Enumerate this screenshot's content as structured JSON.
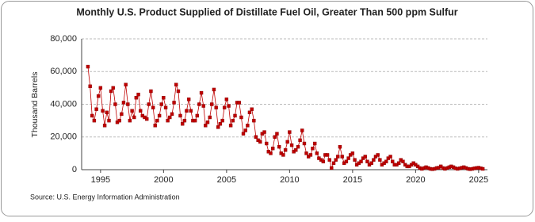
{
  "chart_data": {
    "type": "line",
    "title": "Monthly U.S. Product Supplied of Distillate Fuel Oil, Greater Than 500 ppm Sulfur",
    "y_label": "Thousand Barrels",
    "source": "Source: U.S. Energy Information Administration",
    "color": "#c00000",
    "grid": true,
    "xlim": [
      1993.5,
      2025.7
    ],
    "xticks": [
      1995,
      2000,
      2005,
      2010,
      2015,
      2020,
      2025
    ],
    "ylim": [
      0,
      80000
    ],
    "yticks": [
      {
        "value": 0,
        "label": "0"
      },
      {
        "value": 20000,
        "label": "20,000"
      },
      {
        "value": 40000,
        "label": "40,000"
      },
      {
        "value": 60000,
        "label": "60,000"
      },
      {
        "value": 80000,
        "label": "80,000"
      }
    ],
    "x": [
      1994,
      1994.17,
      1994.33,
      1994.5,
      1994.67,
      1994.83,
      1995,
      1995.17,
      1995.33,
      1995.5,
      1995.67,
      1995.83,
      1996,
      1996.17,
      1996.33,
      1996.5,
      1996.67,
      1996.83,
      1997,
      1997.17,
      1997.33,
      1997.5,
      1997.67,
      1997.83,
      1998,
      1998.17,
      1998.33,
      1998.5,
      1998.67,
      1998.83,
      1999,
      1999.17,
      1999.33,
      1999.5,
      1999.67,
      1999.83,
      2000,
      2000.17,
      2000.33,
      2000.5,
      2000.67,
      2000.83,
      2001,
      2001.17,
      2001.33,
      2001.5,
      2001.67,
      2001.83,
      2002,
      2002.17,
      2002.33,
      2002.5,
      2002.67,
      2002.83,
      2003,
      2003.17,
      2003.33,
      2003.5,
      2003.67,
      2003.83,
      2004,
      2004.17,
      2004.33,
      2004.5,
      2004.67,
      2004.83,
      2005,
      2005.17,
      2005.33,
      2005.5,
      2005.67,
      2005.83,
      2006,
      2006.17,
      2006.33,
      2006.5,
      2006.67,
      2006.83,
      2007,
      2007.17,
      2007.33,
      2007.5,
      2007.67,
      2007.83,
      2008,
      2008.17,
      2008.33,
      2008.5,
      2008.67,
      2008.83,
      2009,
      2009.17,
      2009.33,
      2009.5,
      2009.67,
      2009.83,
      2010,
      2010.17,
      2010.33,
      2010.5,
      2010.67,
      2010.83,
      2011,
      2011.17,
      2011.33,
      2011.5,
      2011.67,
      2011.83,
      2012,
      2012.17,
      2012.33,
      2012.5,
      2012.67,
      2012.83,
      2013,
      2013.17,
      2013.33,
      2013.5,
      2013.67,
      2013.83,
      2014,
      2014.17,
      2014.33,
      2014.5,
      2014.67,
      2014.83,
      2015,
      2015.17,
      2015.33,
      2015.5,
      2015.67,
      2015.83,
      2016,
      2016.17,
      2016.33,
      2016.5,
      2016.67,
      2016.83,
      2017,
      2017.17,
      2017.33,
      2017.5,
      2017.67,
      2017.83,
      2018,
      2018.17,
      2018.33,
      2018.5,
      2018.67,
      2018.83,
      2019,
      2019.17,
      2019.33,
      2019.5,
      2019.67,
      2019.83,
      2020,
      2020.17,
      2020.33,
      2020.5,
      2020.67,
      2020.83,
      2021,
      2021.17,
      2021.33,
      2021.5,
      2021.67,
      2021.83,
      2022,
      2022.17,
      2022.33,
      2022.5,
      2022.67,
      2022.83,
      2023,
      2023.17,
      2023.33,
      2023.5,
      2023.67,
      2023.83,
      2024,
      2024.17,
      2024.33,
      2024.5,
      2024.67,
      2024.83,
      2025,
      2025.17,
      2025.33
    ],
    "values": [
      63000,
      51000,
      33000,
      30000,
      37000,
      45000,
      50000,
      36000,
      27000,
      35000,
      30000,
      48000,
      50000,
      40000,
      29000,
      30000,
      34000,
      41000,
      52000,
      40000,
      30000,
      36000,
      32000,
      44000,
      46000,
      36000,
      33000,
      32000,
      31000,
      40000,
      48000,
      38000,
      27000,
      30000,
      33000,
      40000,
      44000,
      38000,
      30000,
      32000,
      34000,
      41000,
      52000,
      48000,
      33000,
      28000,
      30000,
      36000,
      43000,
      36000,
      30000,
      30000,
      33000,
      40000,
      47000,
      39000,
      27000,
      29000,
      32000,
      40000,
      49000,
      38000,
      26000,
      28000,
      30000,
      38000,
      43000,
      39000,
      27000,
      30000,
      33000,
      41000,
      41000,
      32000,
      22000,
      24000,
      27000,
      35000,
      37000,
      30000,
      20000,
      18000,
      17000,
      22000,
      23000,
      16000,
      11000,
      10000,
      13000,
      20000,
      22000,
      14000,
      10000,
      9000,
      12000,
      17000,
      23000,
      15000,
      11000,
      12000,
      14000,
      18000,
      24000,
      16000,
      10000,
      8000,
      9000,
      13000,
      16000,
      10000,
      7000,
      6000,
      5000,
      9000,
      9000,
      6000,
      1000,
      4000,
      6000,
      8000,
      14000,
      8000,
      4000,
      5000,
      7000,
      9000,
      10000,
      6000,
      3000,
      4000,
      5000,
      7000,
      8000,
      5000,
      3000,
      4000,
      6000,
      8000,
      9000,
      6000,
      3000,
      4000,
      5000,
      7000,
      8000,
      5000,
      3000,
      3000,
      4000,
      6000,
      5000,
      3000,
      2000,
      2000,
      3000,
      4000,
      3000,
      2000,
      1000,
      500,
      1000,
      1500,
      1000,
      500,
      300,
      500,
      1000,
      1200,
      2000,
      1000,
      500,
      1000,
      1500,
      2000,
      1500,
      800,
      500,
      800,
      1200,
      1500,
      1000,
      500,
      300,
      500,
      800,
      1000,
      1200,
      800,
      500
    ]
  }
}
